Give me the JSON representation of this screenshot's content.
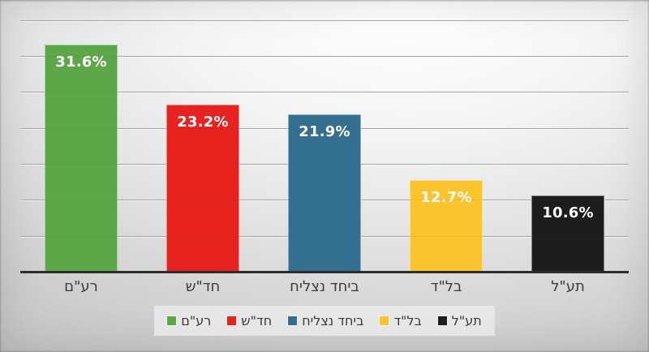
{
  "chart_data": {
    "type": "bar",
    "title": "",
    "xlabel": "",
    "ylabel": "",
    "direction": "rtl",
    "grid": true,
    "y_axis_labels_visible": false,
    "ylim": [
      0,
      35
    ],
    "gridline_step": 5,
    "categories": [
      "רע\"ם",
      "חד\"ש",
      "ביחד נצליח",
      "בל\"ד",
      "תע\"ל"
    ],
    "values": [
      31.6,
      23.2,
      21.9,
      12.7,
      10.6
    ],
    "value_labels": [
      "31.6%",
      "23.2%",
      "21.9%",
      "12.7%",
      "10.6%"
    ],
    "bar_colors": [
      "#5CA747",
      "#E8231F",
      "#33708F",
      "#FBC42C",
      "#1D1D1D"
    ],
    "legend": {
      "position": "bottom",
      "entries": [
        {
          "label": "רע\"ם",
          "color": "#5CA747"
        },
        {
          "label": "חד\"ש",
          "color": "#E8231F"
        },
        {
          "label": "ביחד נצליח",
          "color": "#33708F"
        },
        {
          "label": "בל\"ד",
          "color": "#FBC42C"
        },
        {
          "label": "תע\"ל",
          "color": "#1D1D1D"
        }
      ]
    },
    "colors": {
      "axis_line": "#2d2d2d",
      "gridline": "#aeaeae",
      "label_text": "#3b3b3b",
      "value_text": "#ffffff"
    }
  }
}
